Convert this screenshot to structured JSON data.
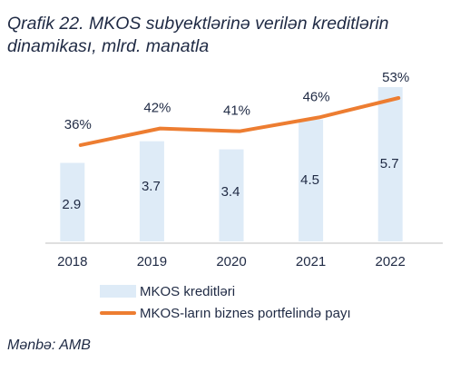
{
  "title_lines": [
    "Qrafik 22. MKOS subyektlərinə verilən kreditlərin",
    "dinamikası, mlrd. manatla"
  ],
  "source": "Mənbə: AMB",
  "colors": {
    "bar": "#deebf7",
    "line": "#ed7d31",
    "text": "#1f2a44",
    "axis": "#bfbfbf"
  },
  "chart_data": {
    "type": "bar",
    "categories": [
      "2018",
      "2019",
      "2020",
      "2021",
      "2022"
    ],
    "series": [
      {
        "name": "MKOS kreditləri",
        "type": "bar",
        "values": [
          2.9,
          3.7,
          3.4,
          4.5,
          5.7
        ],
        "labels": [
          "2.9",
          "3.7",
          "3.4",
          "4.5",
          "5.7"
        ]
      },
      {
        "name": "MKOS-ların biznes portfelində payı",
        "type": "line",
        "values": [
          36,
          42,
          41,
          46,
          53
        ],
        "labels": [
          "36%",
          "42%",
          "41%",
          "46%",
          "53%"
        ]
      }
    ],
    "bar_ylim": [
      0,
      5.7
    ],
    "line_ylim": [
      0,
      53
    ],
    "legend": "bottom",
    "grid": false
  }
}
